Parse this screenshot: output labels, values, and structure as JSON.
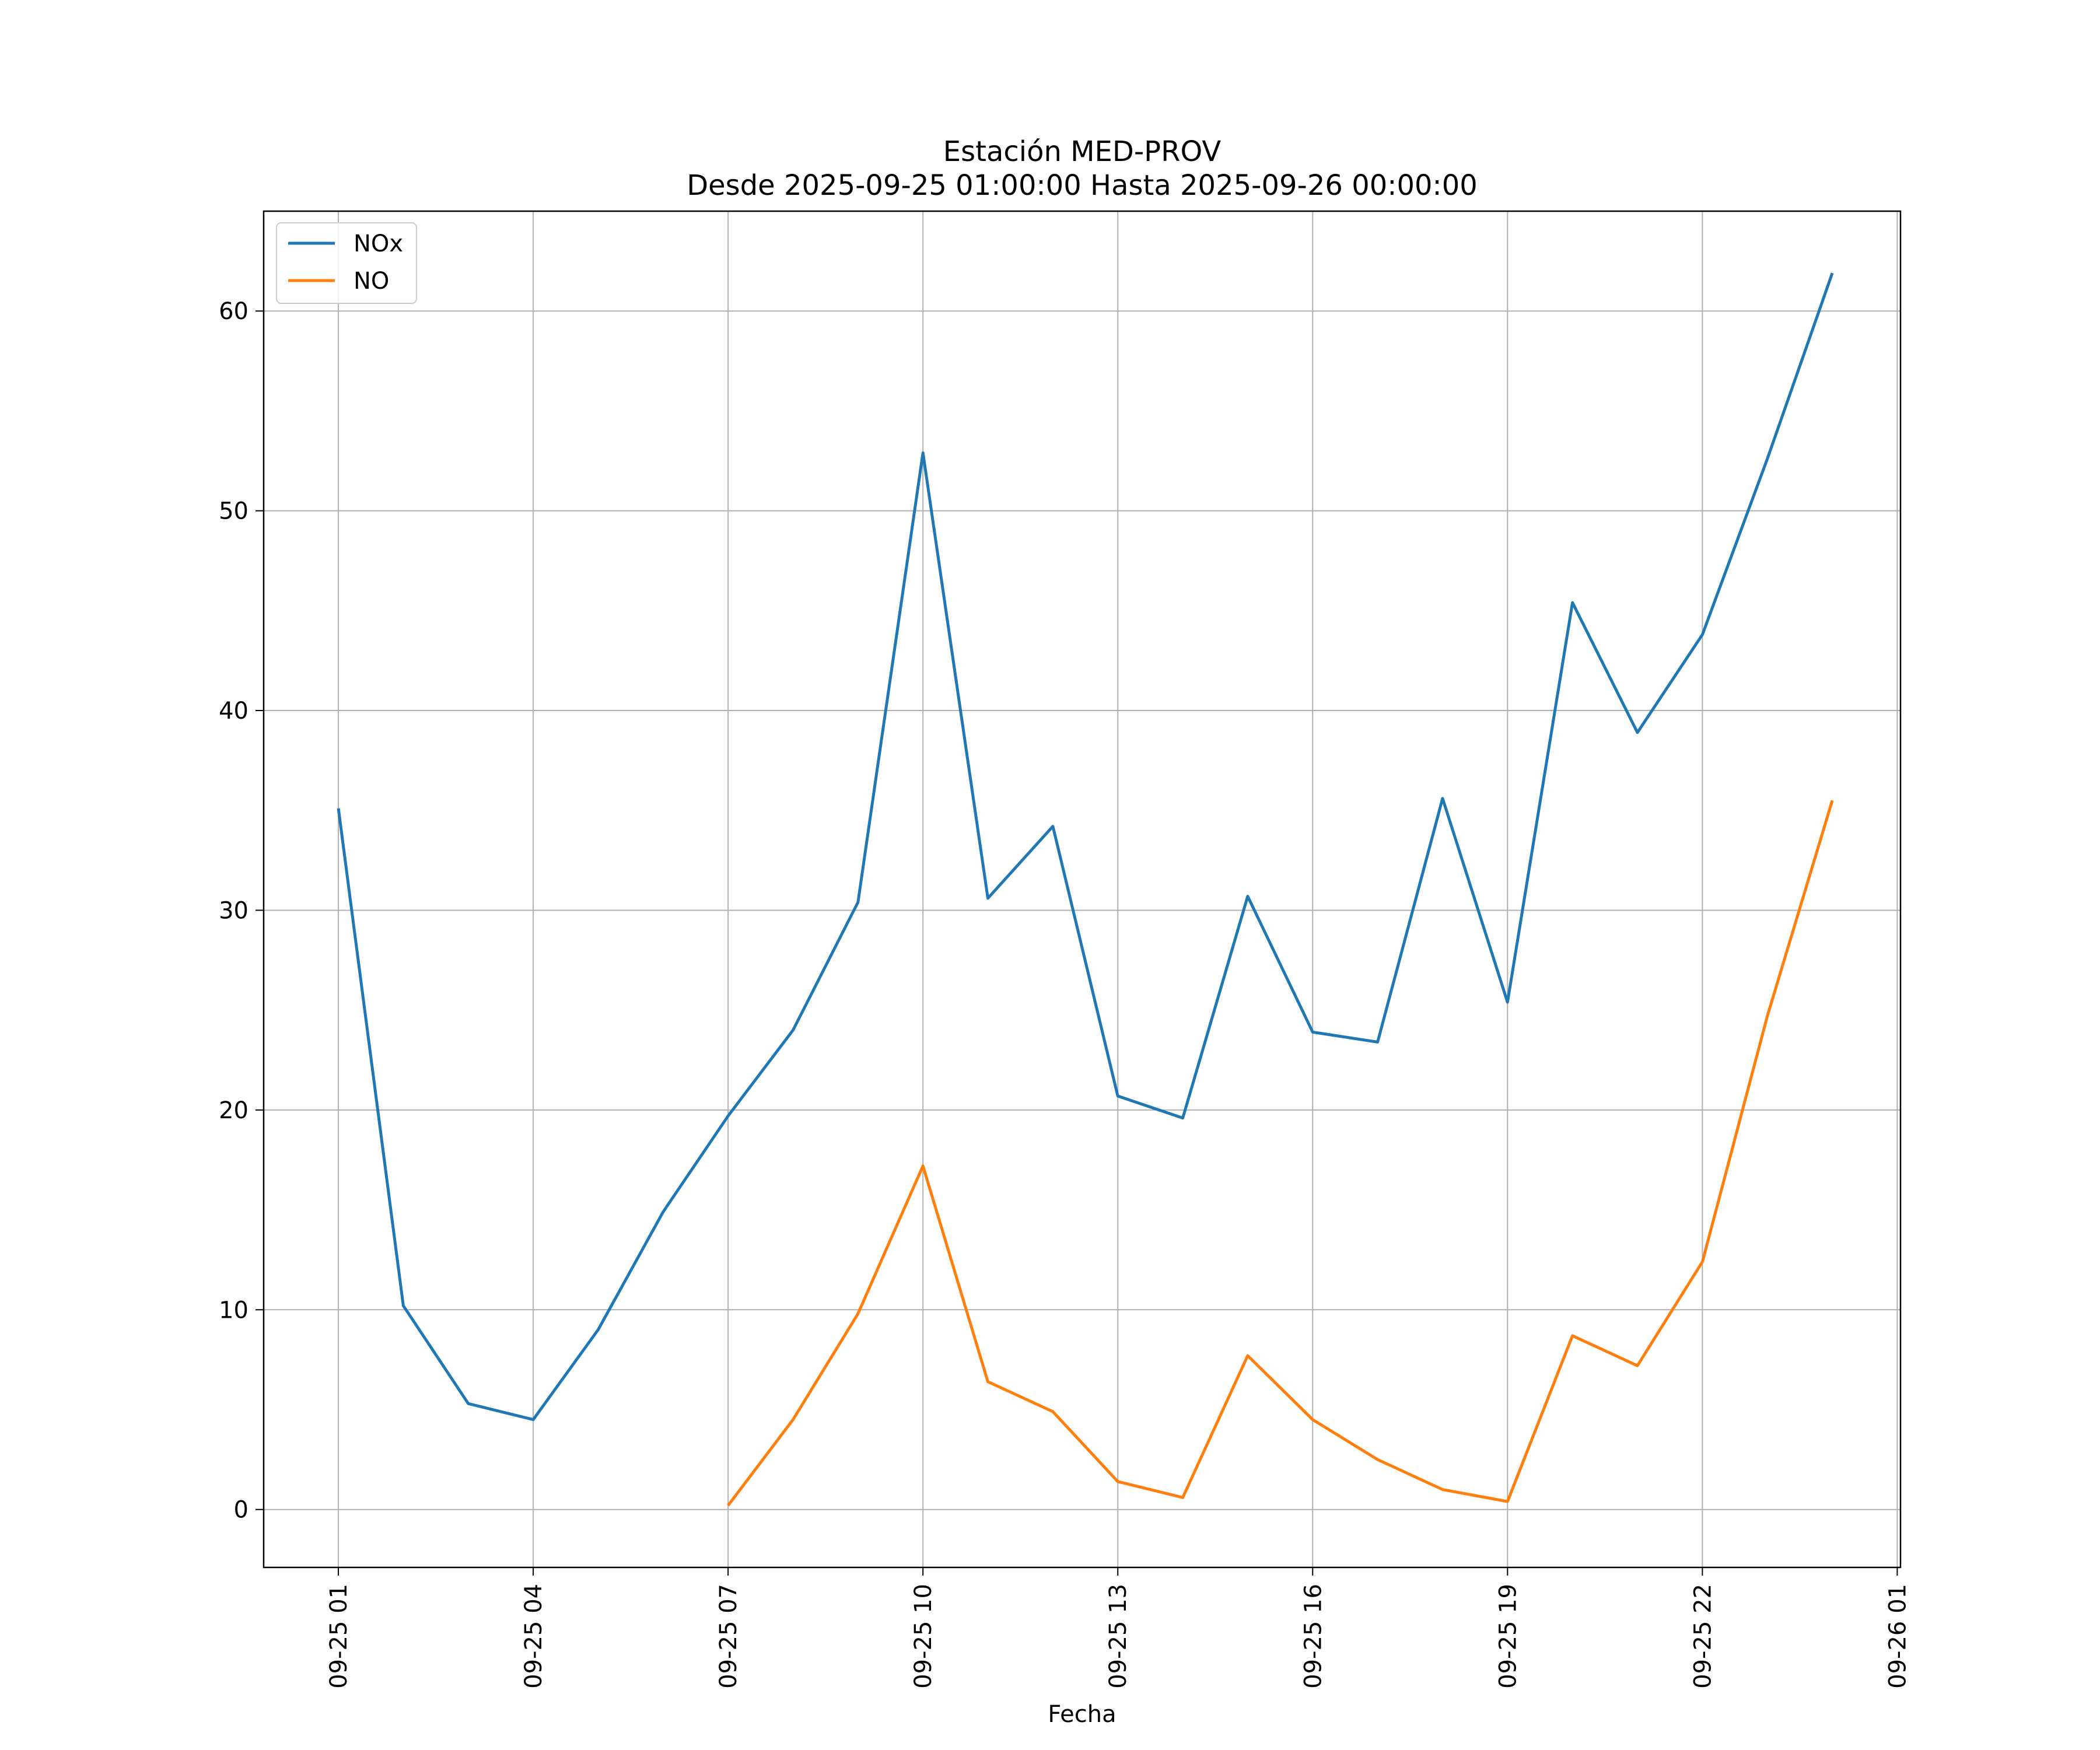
{
  "chart_data": {
    "type": "line",
    "title_line1": "Estación MED-PROV",
    "title_line2": "Desde 2025-09-25 01:00:00 Hasta 2025-09-26 00:00:00",
    "xlabel": "Fecha",
    "ylabel": "",
    "x_hours": [
      1,
      2,
      3,
      4,
      5,
      6,
      7,
      8,
      9,
      10,
      11,
      12,
      13,
      14,
      15,
      16,
      17,
      18,
      19,
      20,
      21,
      22,
      23,
      24
    ],
    "xlim": [
      -0.15,
      25.05
    ],
    "ylim": [
      -2.9,
      65
    ],
    "x_ticks": [
      {
        "hour": 1,
        "label": "09-25 01"
      },
      {
        "hour": 4,
        "label": "09-25 04"
      },
      {
        "hour": 7,
        "label": "09-25 07"
      },
      {
        "hour": 10,
        "label": "09-25 10"
      },
      {
        "hour": 13,
        "label": "09-25 13"
      },
      {
        "hour": 16,
        "label": "09-25 16"
      },
      {
        "hour": 19,
        "label": "09-25 19"
      },
      {
        "hour": 22,
        "label": "09-25 22"
      },
      {
        "hour": 25,
        "label": "09-26 01"
      }
    ],
    "y_ticks": [
      {
        "value": 0,
        "label": "0"
      },
      {
        "value": 10,
        "label": "10"
      },
      {
        "value": 20,
        "label": "20"
      },
      {
        "value": 30,
        "label": "30"
      },
      {
        "value": 40,
        "label": "40"
      },
      {
        "value": 50,
        "label": "50"
      },
      {
        "value": 60,
        "label": "60"
      }
    ],
    "grid": true,
    "legend_position": "top-left",
    "series": [
      {
        "name": "NOx",
        "color": "#1f77b4",
        "values": [
          35.1,
          10.2,
          5.3,
          4.5,
          9.0,
          14.9,
          19.7,
          24.0,
          30.4,
          52.9,
          30.6,
          34.2,
          20.7,
          19.6,
          30.7,
          23.9,
          23.4,
          35.6,
          25.4,
          45.4,
          38.9,
          43.8,
          52.6,
          61.9
        ]
      },
      {
        "name": "NO",
        "color": "#ff7f0e",
        "values": [
          null,
          null,
          null,
          null,
          null,
          null,
          0.2,
          4.5,
          9.8,
          17.2,
          6.4,
          4.9,
          1.4,
          0.6,
          7.7,
          4.5,
          2.5,
          1.0,
          0.4,
          8.7,
          7.2,
          12.4,
          24.7,
          35.5
        ]
      }
    ]
  }
}
